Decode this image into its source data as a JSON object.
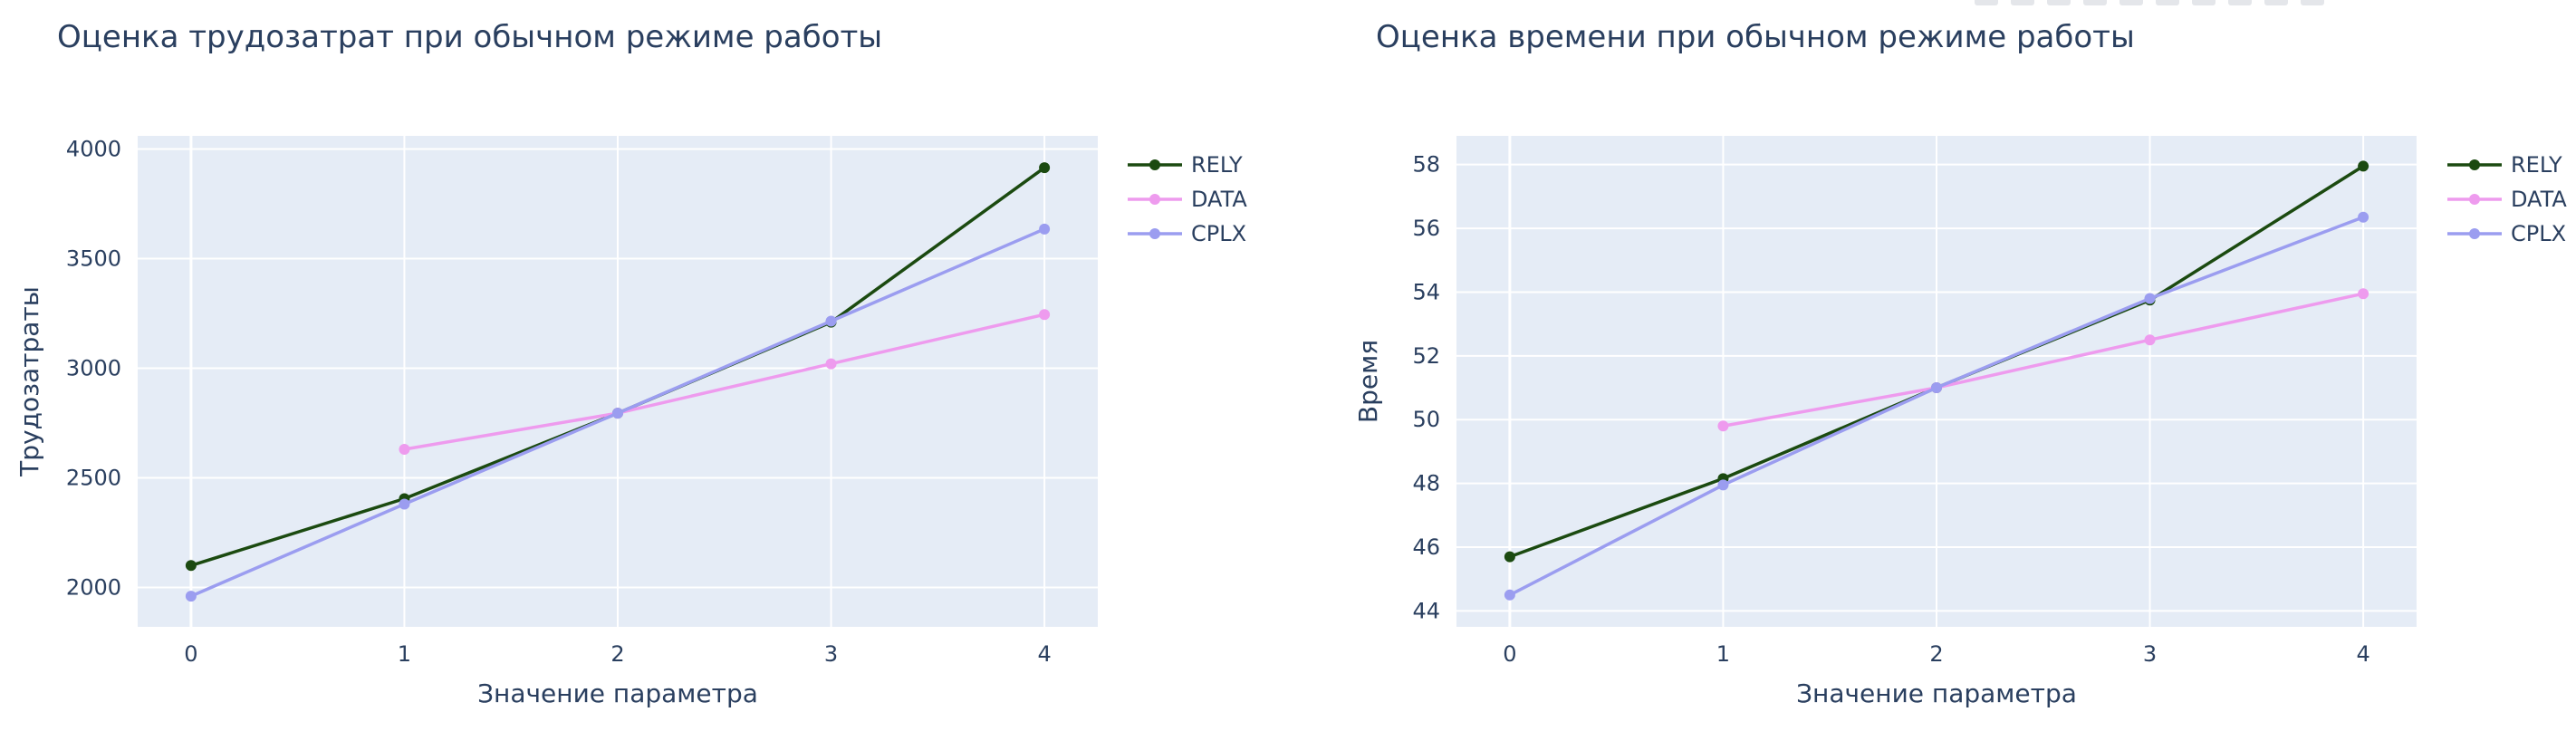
{
  "chart_data": [
    {
      "type": "line",
      "title": "Оценка трудозатрат при обычном режиме работы",
      "xlabel": "Значение параметра",
      "ylabel": "Трудозатраты",
      "x": [
        0,
        1,
        2,
        3,
        4
      ],
      "xlim": [
        -0.25,
        4.25
      ],
      "ylim": [
        1820,
        4060
      ],
      "yticks": [
        2000,
        2500,
        3000,
        3500,
        4000
      ],
      "grid": true,
      "legend": "right",
      "series": [
        {
          "name": "RELY",
          "color": "#1b4a10",
          "values": [
            2100,
            2405,
            2795,
            3210,
            3915
          ]
        },
        {
          "name": "DATA",
          "color": "#ee9bee",
          "values": [
            null,
            2630,
            2795,
            3020,
            3245
          ]
        },
        {
          "name": "CPLX",
          "color": "#9b9df0",
          "values": [
            1960,
            2380,
            2795,
            3215,
            3635
          ]
        }
      ]
    },
    {
      "type": "line",
      "title": "Оценка времени при обычном режиме работы",
      "xlabel": "Значение параметра",
      "ylabel": "Время",
      "x": [
        0,
        1,
        2,
        3,
        4
      ],
      "xlim": [
        -0.25,
        4.25
      ],
      "ylim": [
        43.5,
        58.9
      ],
      "yticks": [
        44,
        46,
        48,
        50,
        52,
        54,
        56,
        58
      ],
      "grid": true,
      "legend": "right",
      "series": [
        {
          "name": "RELY",
          "color": "#1b4a10",
          "values": [
            45.7,
            48.15,
            51.0,
            53.75,
            57.95
          ]
        },
        {
          "name": "DATA",
          "color": "#ee9bee",
          "values": [
            null,
            49.8,
            51.0,
            52.5,
            53.95
          ]
        },
        {
          "name": "CPLX",
          "color": "#9b9df0",
          "values": [
            44.5,
            47.95,
            51.0,
            53.8,
            56.35
          ]
        }
      ]
    }
  ]
}
